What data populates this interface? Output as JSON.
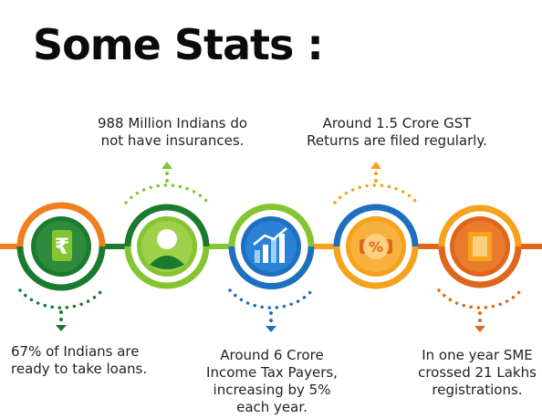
{
  "title": "Some Stats :",
  "colors": {
    "orange": "#f07f1e",
    "dark_green": "#1a7a2e",
    "lime": "#84c531",
    "blue": "#1f6fc0",
    "amber": "#f5a21c",
    "dark_orange": "#e0661c"
  },
  "items": [
    {
      "icon": "rupee-icon",
      "text": "67% of Indians are ready to take loans."
    },
    {
      "icon": "person-icon",
      "text": "988 Million Indians do not have insurances."
    },
    {
      "icon": "growth-chart-icon",
      "text": "Around 6 Crore Income Tax Payers, increasing by 5% each year."
    },
    {
      "icon": "percent-badge-icon",
      "text": "Around 1.5 Crore GST Returns are filed regularly."
    },
    {
      "icon": "document-icon",
      "text": "In one year SME crossed 21 Lakhs registrations."
    }
  ]
}
